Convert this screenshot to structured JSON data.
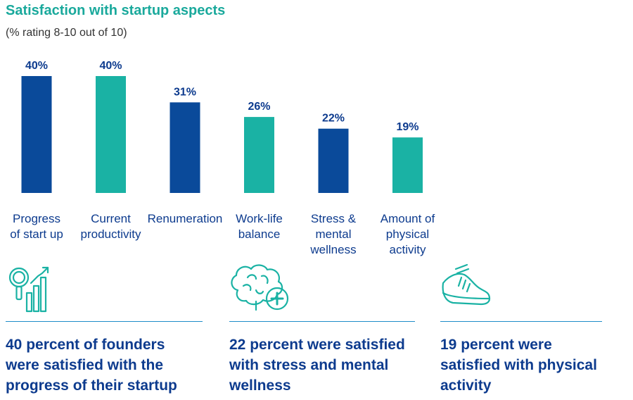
{
  "chart_data": {
    "type": "bar",
    "title": "Satisfaction with startup aspects",
    "subtitle": "(% rating 8-10 out of 10)",
    "categories": [
      [
        "Progress",
        "of start up"
      ],
      [
        "Current",
        "productivity"
      ],
      [
        "Renumeration"
      ],
      [
        "Work-life",
        "balance"
      ],
      [
        "Stress &",
        "mental",
        "wellness"
      ],
      [
        "Amount of",
        "physical",
        "activity"
      ]
    ],
    "values": [
      40,
      40,
      31,
      26,
      22,
      19
    ],
    "value_labels": [
      "40%",
      "40%",
      "31%",
      "26%",
      "22%",
      "19%"
    ],
    "bar_colors": [
      "#0a4a9a",
      "#1ab2a4",
      "#0a4a9a",
      "#1ab2a4",
      "#0a4a9a",
      "#1ab2a4"
    ],
    "ylim": [
      0,
      40
    ],
    "grid": false,
    "legend": "none"
  },
  "colors": {
    "title": "#1aa99c",
    "label_blue": "#0d3b8e",
    "teal": "#1ab2a4",
    "navy": "#0a4a9a",
    "rule": "#1f8dc9"
  },
  "cards": [
    {
      "icon": "magnifier-growth-chart-icon",
      "text": "40 percent of founders were satisfied with the progress of their startup"
    },
    {
      "icon": "brain-plus-icon",
      "text": "22 percent were satisfied with stress and mental wellness"
    },
    {
      "icon": "running-shoe-icon",
      "text": "19 percent were satisfied with physical activity"
    }
  ]
}
